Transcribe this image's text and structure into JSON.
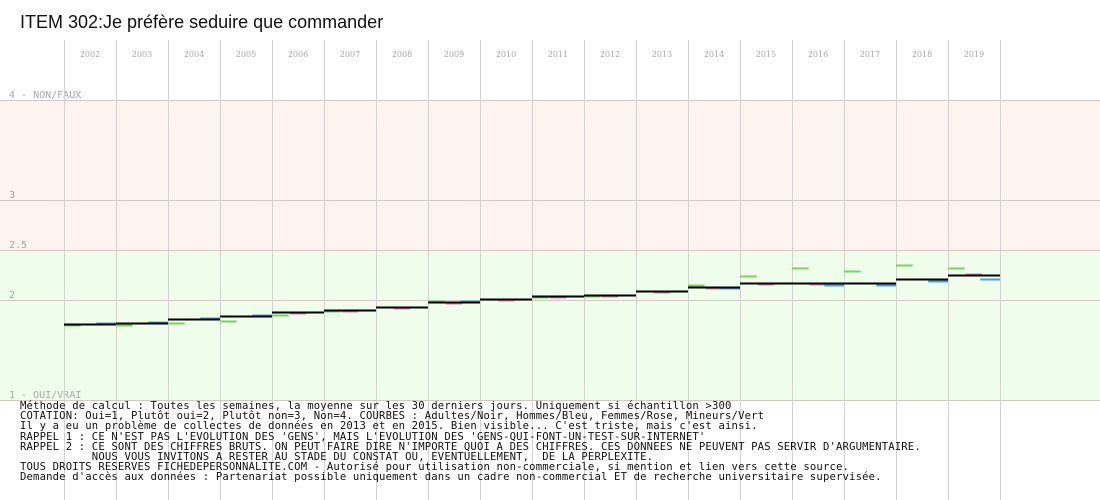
{
  "title": "ITEM 302:Je préfère seduire que commander",
  "chart_data": {
    "type": "line",
    "title": "ITEM 302:Je préfère seduire que commander",
    "years": [
      "2002",
      "2003",
      "2004",
      "2005",
      "2006",
      "2007",
      "2008",
      "2009",
      "2010",
      "2011",
      "2012",
      "2013",
      "2014",
      "2015",
      "2016",
      "2017",
      "2018",
      "2019"
    ],
    "y_ticks": [
      {
        "value": 4,
        "label": "4 - NON/FAUX"
      },
      {
        "value": 3,
        "label": "3"
      },
      {
        "value": 2.5,
        "label": "2.5"
      },
      {
        "value": 2,
        "label": "2"
      },
      {
        "value": 1,
        "label": "1 - OUI/VRAI"
      }
    ],
    "ylim": [
      1,
      4
    ],
    "bands": [
      {
        "from": 2.5,
        "to": 4,
        "color": "#fdf3ef"
      },
      {
        "from": 1,
        "to": 2.5,
        "color": "#eefeea"
      }
    ],
    "grid": true,
    "series": [
      {
        "name": "Adultes",
        "color": "#000000",
        "values": [
          1.76,
          1.77,
          1.81,
          1.84,
          1.88,
          1.9,
          1.93,
          1.98,
          2.01,
          2.04,
          2.05,
          2.09,
          2.13,
          2.17,
          2.17,
          2.17,
          2.21,
          2.25
        ]
      },
      {
        "name": "Hommes",
        "color": "#4aa0e8",
        "values": [
          1.77,
          1.78,
          1.82,
          1.85,
          1.88,
          1.9,
          1.93,
          1.99,
          2.01,
          2.04,
          2.05,
          2.09,
          2.12,
          2.17,
          2.15,
          2.15,
          2.19,
          2.21
        ]
      },
      {
        "name": "Femmes",
        "color": "#e880b8",
        "values": [
          1.76,
          1.77,
          1.81,
          1.84,
          1.87,
          1.89,
          1.92,
          1.97,
          2.0,
          2.03,
          2.04,
          2.08,
          2.12,
          2.16,
          2.16,
          2.17,
          2.21,
          2.26
        ]
      },
      {
        "name": "Mineurs",
        "color": "#7ed060",
        "values": [
          1.75,
          1.75,
          1.77,
          1.79,
          1.85,
          1.89,
          1.93,
          1.99,
          2.01,
          2.03,
          2.04,
          2.09,
          2.15,
          2.24,
          2.32,
          2.29,
          2.35,
          2.32
        ]
      }
    ]
  },
  "notes": [
    "Méthode de calcul : Toutes les semaines, la moyenne sur les 30 derniers jours. Uniquement si échantillon >300",
    "COTATION: Oui=1, Plutôt oui=2, Plutôt non=3, Non=4. COURBES : Adultes/Noir, Hommes/Bleu, Femmes/Rose, Mineurs/Vert",
    "Il y a eu un problème de collectes de données en 2013 et en 2015. Bien visible... C'est triste, mais c'est ainsi.",
    "RAPPEL 1 : CE N'EST PAS L'EVOLUTION DES 'GENS', MAIS L'EVOLUTION DES 'GENS-QUI-FONT-UN-TEST-SUR-INTERNET'",
    "RAPPEL 2 : CE SONT DES CHIFFRES BRUTS. ON PEUT FAIRE DIRE N'IMPORTE QUOI A DES CHIFFRES. CES DONNEES NE PEUVENT PAS SERVIR D'ARGUMENTAIRE.",
    "           NOUS VOUS INVITONS A RESTER AU STADE DU CONSTAT OU, EVENTUELLEMENT,  DE LA PERPLEXITE.",
    "TOUS DROITS RESERVES FICHEDEPERSONNALITE.COM - Autorisé pour utilisation non-commerciale, si mention et lien vers cette source.",
    "Demande d'accès aux données : Partenariat possible uniquement dans un cadre non-commercial ET de recherche universitaire supervisée."
  ]
}
